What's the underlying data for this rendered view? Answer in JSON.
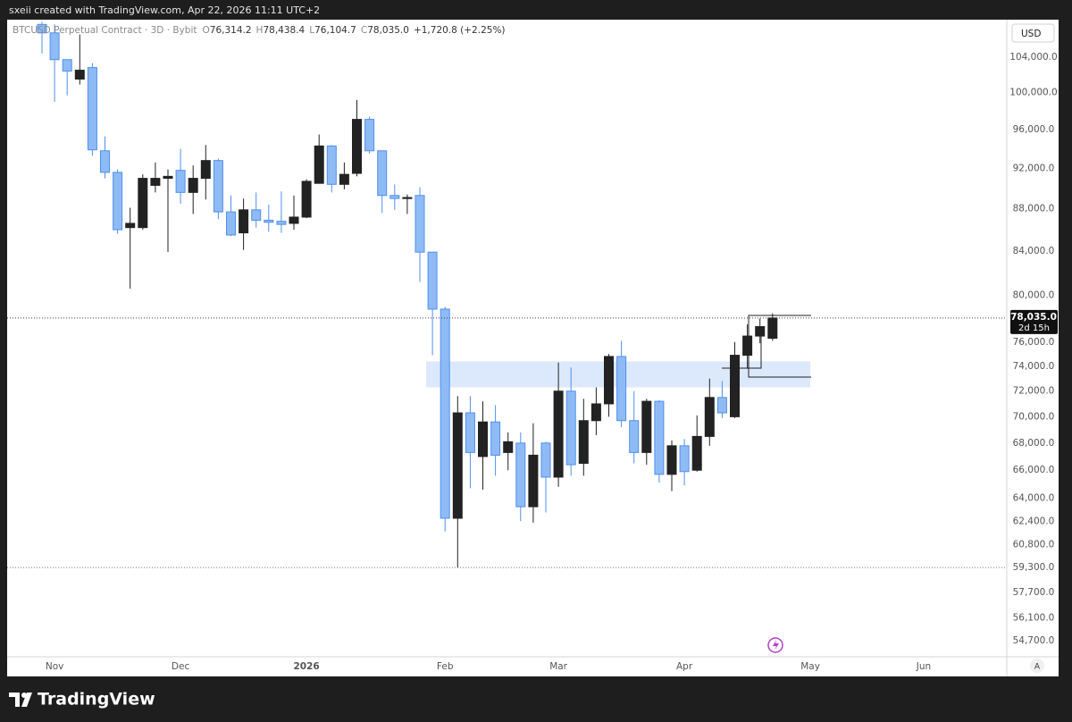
{
  "header": {
    "credit": "sxeii created with TradingView.com, Apr 22, 2026 11:11 UTC+2",
    "brand": "TradingView"
  },
  "chart_data": {
    "type": "candlestick",
    "title": "BTCUSD Perpetual Contract · 3D · Bybit",
    "ohlc_legend": {
      "keys": [
        "O",
        "H",
        "L",
        "C"
      ],
      "texts": [
        "76,314.2",
        "78,438.4",
        "76,104.7",
        "78,035.0"
      ],
      "change": "+1,720.8 (+2.25%)"
    },
    "currency": "USD",
    "scale_mode": "A",
    "last_price_label": "78,035.0",
    "countdown": "2d 15h",
    "log": true,
    "grid": false,
    "up_color": "#222222",
    "down_color": "#8fbbf5",
    "down_border": "#4f8ff0",
    "zone": {
      "low": 72300,
      "high": 74400,
      "color": "#dce8fc"
    },
    "categories": [
      null,
      "Nov",
      null,
      null,
      null,
      null,
      null,
      null,
      null,
      null,
      null,
      "Dec",
      null,
      null,
      null,
      null,
      null,
      null,
      null,
      null,
      null,
      "2026",
      null,
      null,
      null,
      null,
      null,
      null,
      null,
      null,
      null,
      null,
      "Feb",
      null,
      null,
      null,
      null,
      null,
      null,
      null,
      null,
      "Mar",
      null,
      null,
      null,
      null,
      null,
      null,
      null,
      null,
      null,
      "Apr",
      null,
      null,
      null,
      null,
      null,
      null,
      null,
      null,
      null,
      "May",
      null,
      null,
      null,
      null,
      null,
      null,
      null,
      null,
      "Jun"
    ],
    "open": [
      107800,
      106800,
      103700,
      101500,
      102800,
      93800,
      91600,
      86200,
      86200,
      90300,
      91000,
      91800,
      89600,
      91000,
      92800,
      87700,
      85700,
      87900,
      86900,
      86800,
      86600,
      87200,
      90500,
      94300,
      90400,
      91500,
      97100,
      93800,
      89300,
      89000,
      89300,
      83900,
      78800,
      62600,
      70300,
      67000,
      69600,
      67300,
      68000,
      63400,
      68000,
      65500,
      72000,
      66500,
      69700,
      71000,
      74800,
      69700,
      67300,
      71200,
      65700,
      67800,
      66000,
      68500,
      71500,
      70000,
      74900,
      76500,
      76314.2,
      null,
      null,
      null,
      null,
      null,
      null,
      null,
      null,
      null,
      null,
      null,
      null
    ],
    "high": [
      108100,
      107800,
      103700,
      106600,
      103300,
      95300,
      91900,
      88100,
      91400,
      92600,
      91900,
      94000,
      92300,
      94400,
      93000,
      89300,
      89000,
      89600,
      88400,
      89700,
      89300,
      90900,
      95500,
      94400,
      92600,
      99200,
      97400,
      93800,
      90400,
      89400,
      90100,
      83900,
      79000,
      71600,
      71600,
      71200,
      70900,
      68800,
      68800,
      69500,
      68100,
      74300,
      73900,
      71400,
      72300,
      75000,
      76100,
      72000,
      71400,
      71300,
      68200,
      68300,
      70100,
      73000,
      72800,
      76000,
      77500,
      78000,
      78438.4,
      null,
      null,
      null,
      null,
      null,
      null,
      null,
      null,
      null,
      null,
      null,
      null
    ],
    "low": [
      104400,
      99000,
      99700,
      100900,
      93300,
      91000,
      85600,
      80600,
      86000,
      89600,
      83900,
      88500,
      87500,
      88900,
      87000,
      85400,
      84100,
      86200,
      85800,
      85700,
      86000,
      87100,
      90500,
      89600,
      89900,
      91200,
      93500,
      87600,
      87900,
      87500,
      81200,
      74900,
      61700,
      59300,
      64700,
      64600,
      65600,
      66000,
      62400,
      62300,
      63000,
      64800,
      65600,
      65600,
      68600,
      70000,
      69200,
      66500,
      66400,
      65100,
      64500,
      64900,
      65900,
      67800,
      69900,
      69900,
      73800,
      75900,
      76104.7,
      null,
      null,
      null,
      null,
      null,
      null,
      null,
      null,
      null,
      null,
      null,
      null
    ],
    "close": [
      106800,
      103700,
      102400,
      102500,
      93900,
      91600,
      86000,
      86600,
      91000,
      91000,
      91200,
      89600,
      91000,
      92800,
      87700,
      85500,
      87900,
      86900,
      86700,
      86500,
      87200,
      90700,
      94300,
      90400,
      91400,
      97100,
      93800,
      89300,
      89000,
      89100,
      83900,
      78800,
      62600,
      70300,
      67300,
      69600,
      67100,
      68100,
      63400,
      67100,
      65500,
      72000,
      66400,
      69700,
      71000,
      74800,
      69700,
      67300,
      71200,
      65700,
      67800,
      65900,
      68500,
      71500,
      70300,
      74900,
      76500,
      77300,
      78035.0,
      null,
      null,
      null,
      null,
      null,
      null,
      null,
      null,
      null,
      null,
      null,
      null
    ],
    "ylim": [
      53750,
      108150
    ],
    "yticks": [
      {
        "value": 104000,
        "label": "104,000.0"
      },
      {
        "value": 100000,
        "label": "100,000.0"
      },
      {
        "value": 96000,
        "label": "96,000.0"
      },
      {
        "value": 92000,
        "label": "92,000.0"
      },
      {
        "value": 88000,
        "label": "88,000.0"
      },
      {
        "value": 84000,
        "label": "84,000.0"
      },
      {
        "value": 80000,
        "label": "80,000.0"
      },
      {
        "value": 76000,
        "label": "76,000.0"
      },
      {
        "value": 74000,
        "label": "74,000.0"
      },
      {
        "value": 72000,
        "label": "72,000.0"
      },
      {
        "value": 70000,
        "label": "70,000.0"
      },
      {
        "value": 68000,
        "label": "68,000.0"
      },
      {
        "value": 66000,
        "label": "66,000.0"
      },
      {
        "value": 64000,
        "label": "64,000.0"
      },
      {
        "value": 62400,
        "label": "62,400.0"
      },
      {
        "value": 60800,
        "label": "60,800.0"
      },
      {
        "value": 59300,
        "label": "59,300.0"
      },
      {
        "value": 57700,
        "label": "57,700.0"
      },
      {
        "value": 56100,
        "label": "56,100.0"
      },
      {
        "value": 54700,
        "label": "54,700.0"
      }
    ]
  }
}
